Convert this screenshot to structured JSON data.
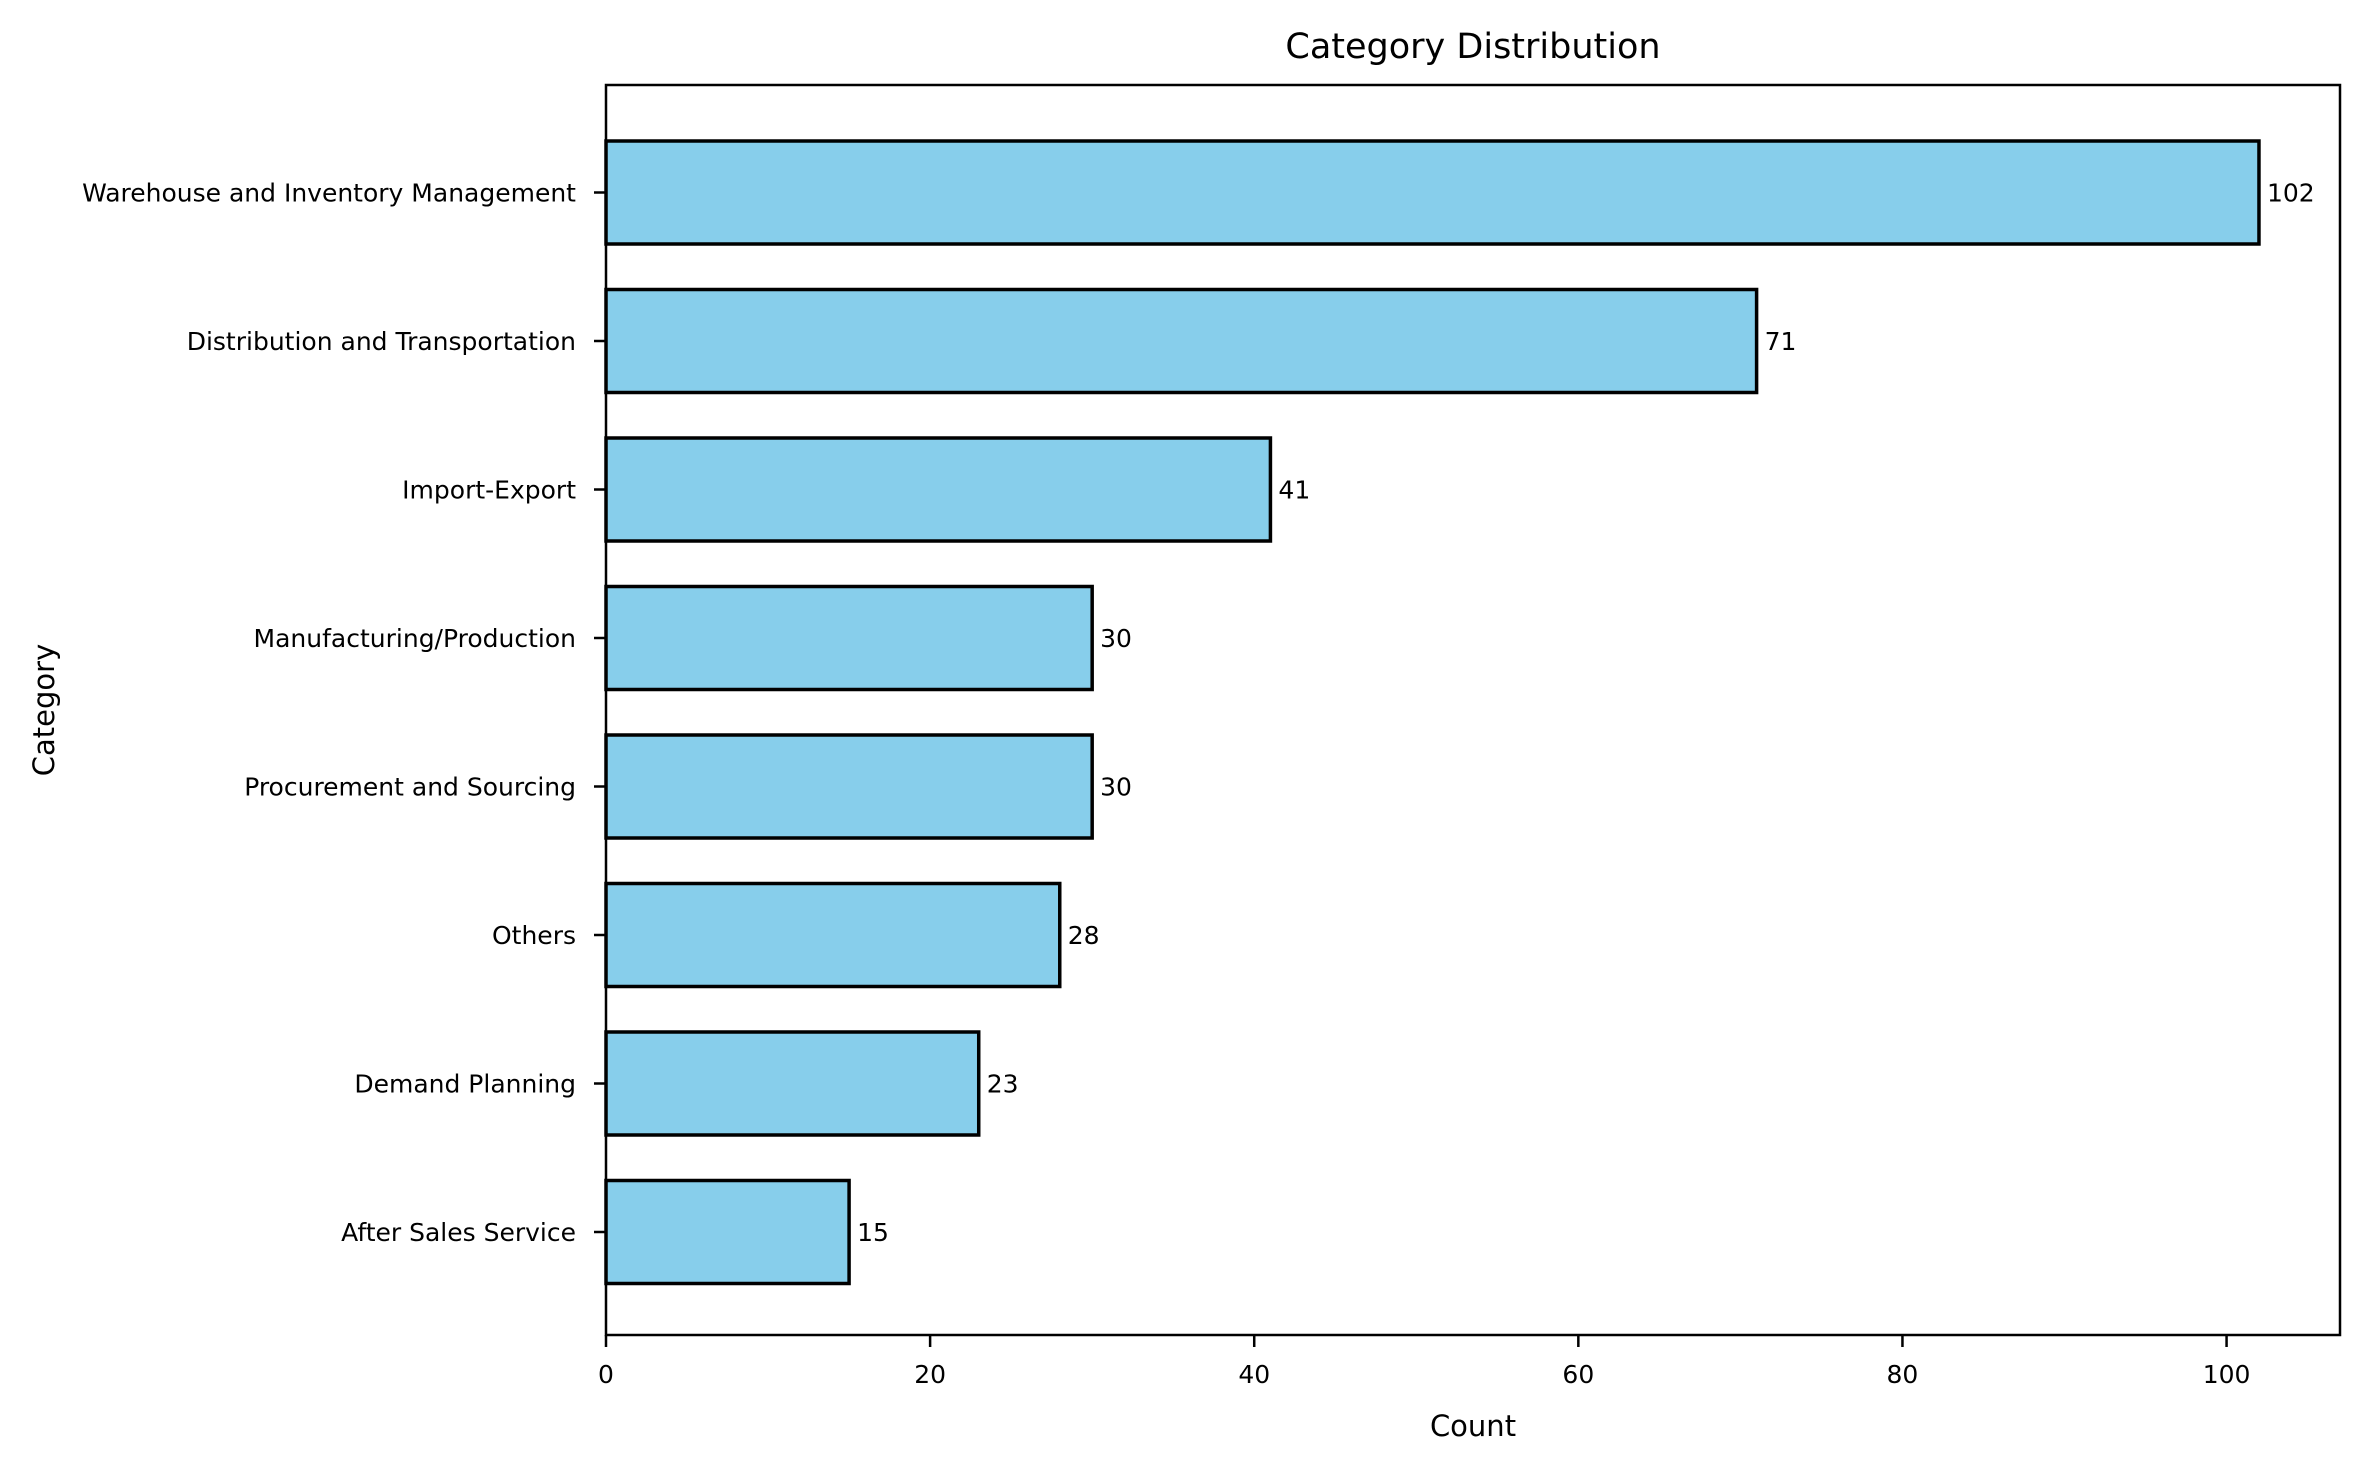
{
  "chart_data": {
    "type": "bar",
    "orientation": "horizontal",
    "title": "Category Distribution",
    "xlabel": "Count",
    "ylabel": "Category",
    "categories": [
      "Warehouse and Inventory Management",
      "Distribution and Transportation",
      "Import-Export",
      "Manufacturing/Production",
      "Procurement and Sourcing",
      "Others",
      "Demand Planning",
      "After Sales Service"
    ],
    "values": [
      102,
      71,
      41,
      30,
      30,
      28,
      23,
      15
    ],
    "xlim": [
      0,
      107
    ],
    "xticks": [
      0,
      20,
      40,
      60,
      80,
      100
    ],
    "grid": false,
    "bar_color": "#87CEEB",
    "edge_color": "#000000"
  }
}
